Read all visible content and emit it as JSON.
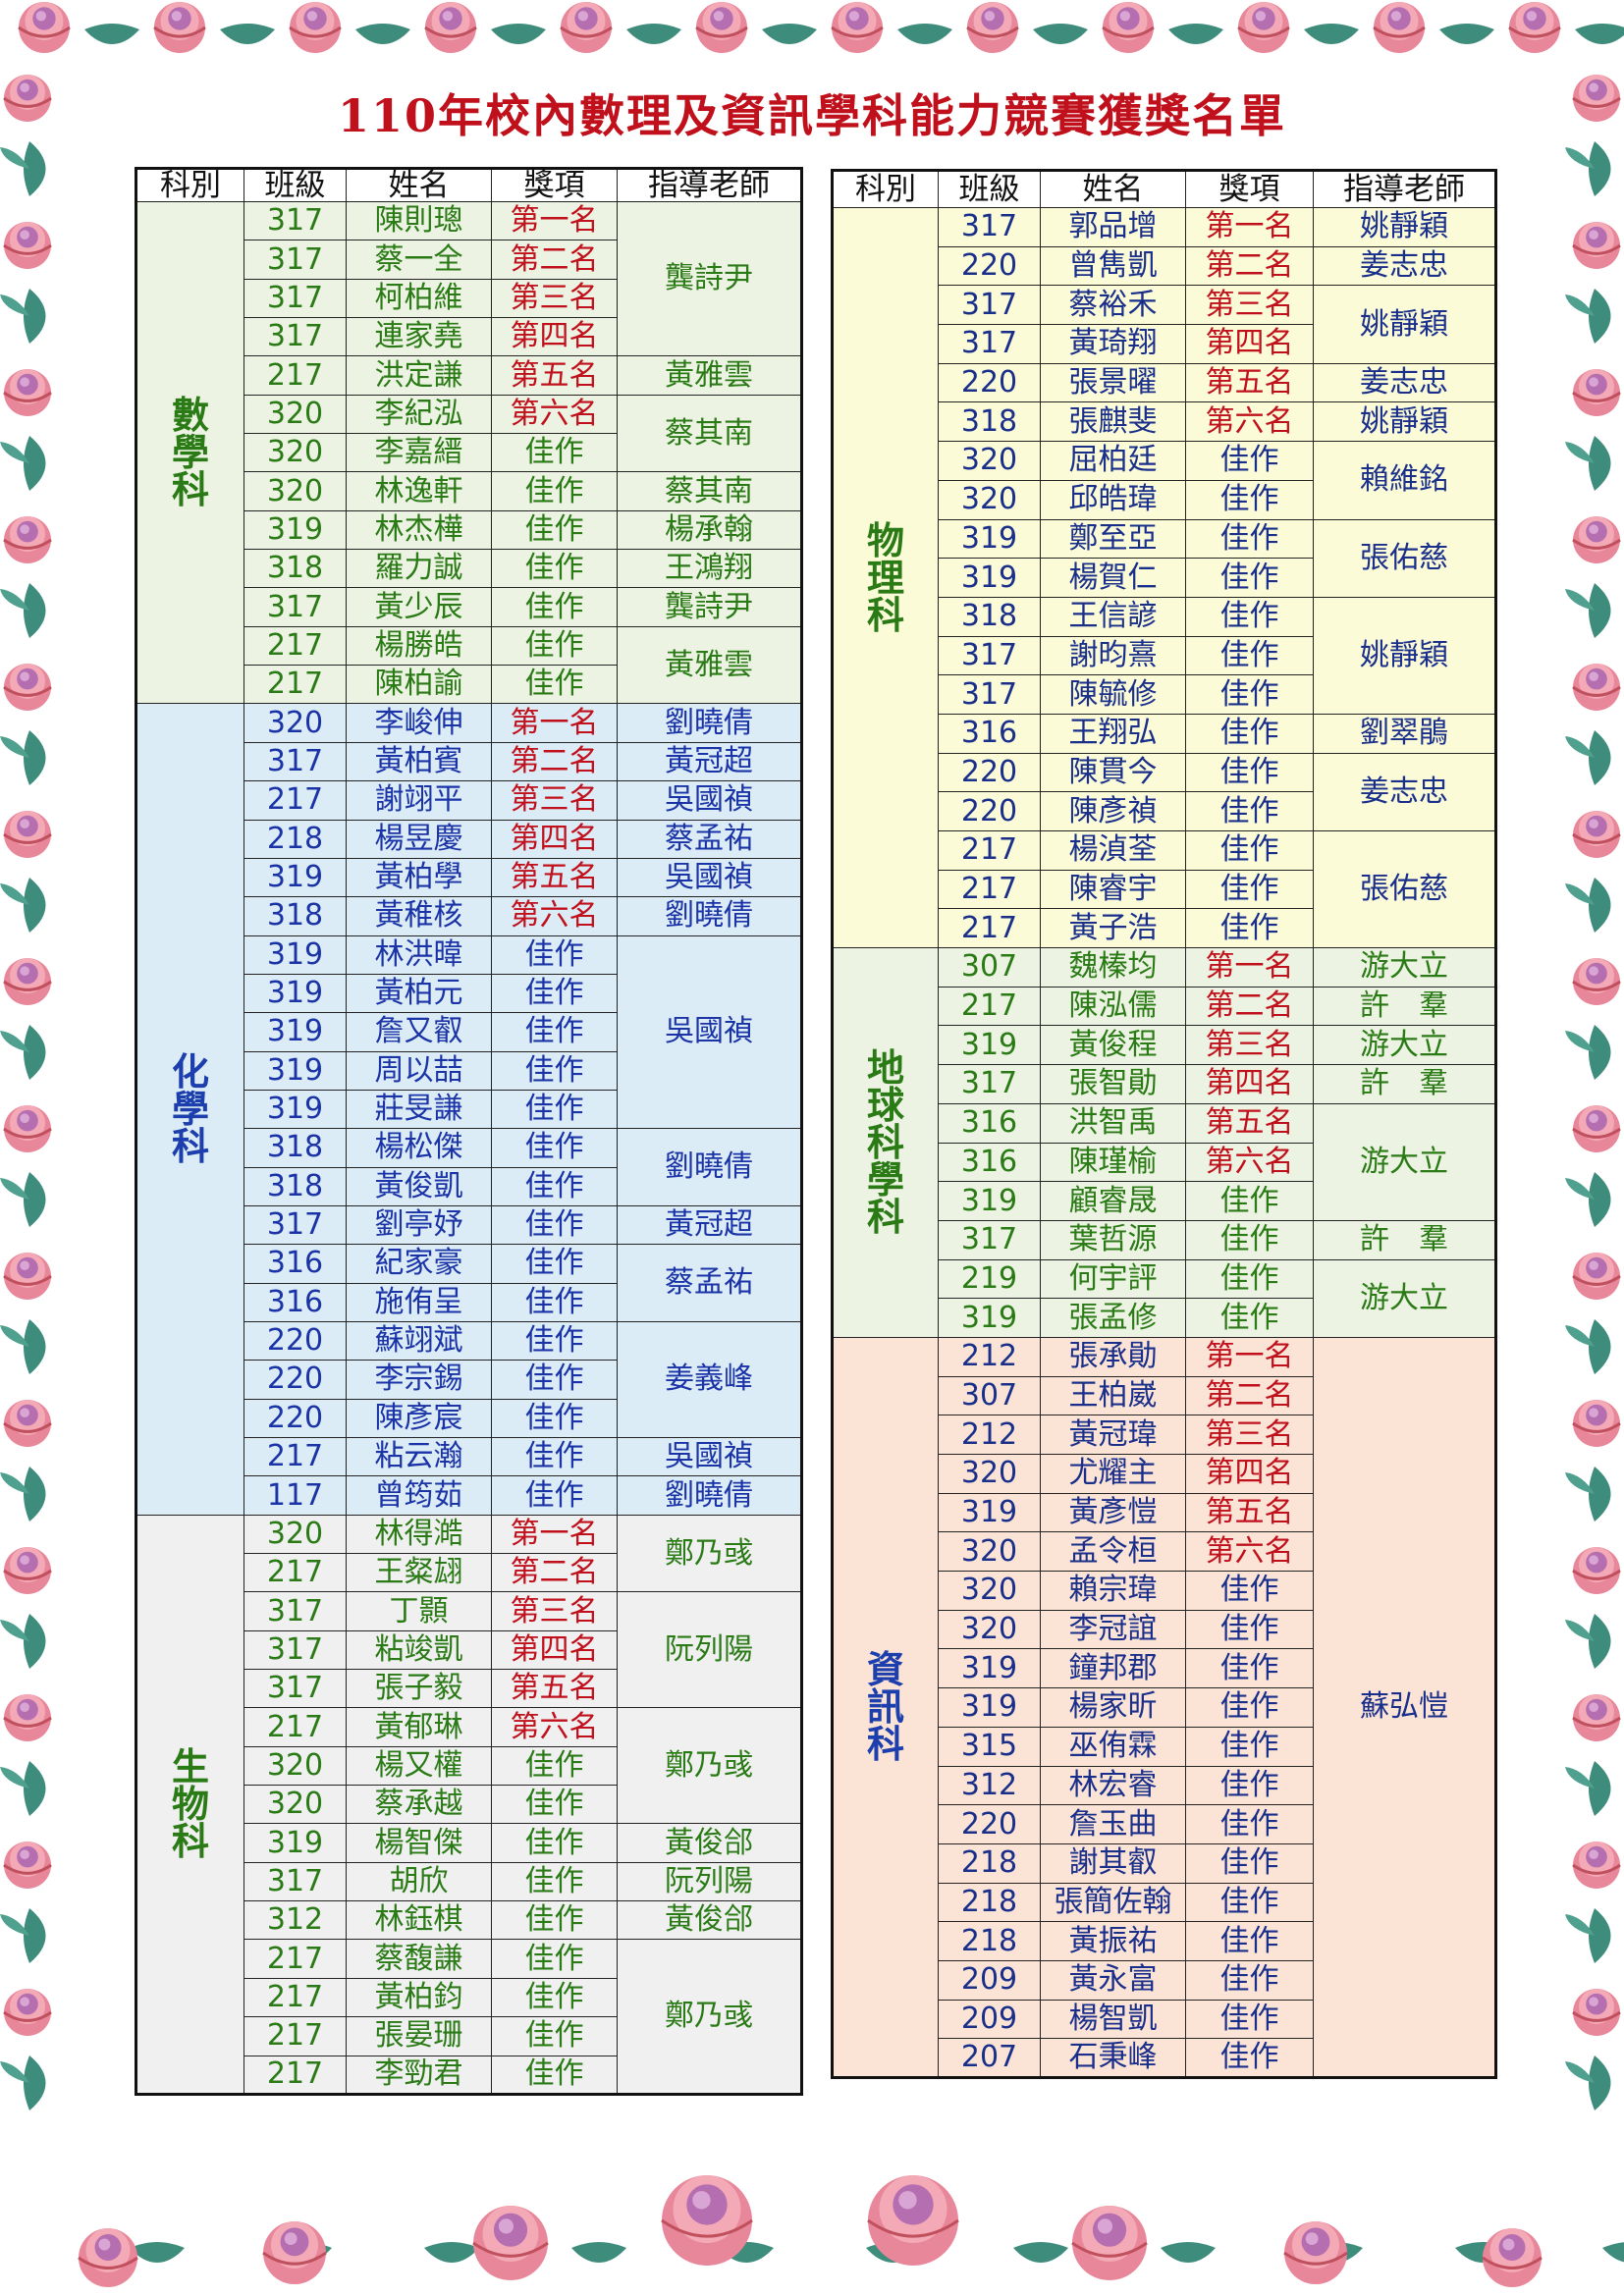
{
  "title": "110年校內數理及資訊學科能力競賽獲獎名單",
  "headers": [
    "科別",
    "班級",
    "姓名",
    "獎項",
    "指導老師"
  ],
  "colors": {
    "rank_top": "#c0101c",
    "border_flower": "#e8889a",
    "leaf": "#3f8a7a"
  },
  "left_table": [
    {
      "subject": "數學科",
      "theme": "green",
      "rows": [
        [
          "317",
          "陳則璁",
          "第一名"
        ],
        [
          "317",
          "蔡一全",
          "第二名"
        ],
        [
          "317",
          "柯柏維",
          "第三名"
        ],
        [
          "317",
          "連家堯",
          "第四名"
        ],
        [
          "217",
          "洪定謙",
          "第五名"
        ],
        [
          "320",
          "李紀泓",
          "第六名"
        ],
        [
          "320",
          "李嘉縉",
          "佳作"
        ],
        [
          "320",
          "林逸軒",
          "佳作"
        ],
        [
          "319",
          "林杰樺",
          "佳作"
        ],
        [
          "318",
          "羅力誠",
          "佳作"
        ],
        [
          "317",
          "黃少辰",
          "佳作"
        ],
        [
          "217",
          "楊勝皓",
          "佳作"
        ],
        [
          "217",
          "陳柏諭",
          "佳作"
        ]
      ],
      "teachers": [
        [
          "龔詩尹",
          4
        ],
        [
          "黃雅雲",
          1
        ],
        [
          "蔡其南",
          2
        ],
        [
          "蔡其南",
          1
        ],
        [
          "楊承翰",
          1
        ],
        [
          "王鴻翔",
          1
        ],
        [
          "龔詩尹",
          1
        ],
        [
          "黃雅雲",
          2
        ]
      ]
    },
    {
      "subject": "化學科",
      "theme": "blue",
      "rows": [
        [
          "320",
          "李峻伸",
          "第一名"
        ],
        [
          "317",
          "黃柏賓",
          "第二名"
        ],
        [
          "217",
          "謝翊平",
          "第三名"
        ],
        [
          "218",
          "楊昱慶",
          "第四名"
        ],
        [
          "319",
          "黃柏學",
          "第五名"
        ],
        [
          "318",
          "黃稚核",
          "第六名"
        ],
        [
          "319",
          "林洪暐",
          "佳作"
        ],
        [
          "319",
          "黃柏元",
          "佳作"
        ],
        [
          "319",
          "詹又叡",
          "佳作"
        ],
        [
          "319",
          "周以喆",
          "佳作"
        ],
        [
          "319",
          "莊旻謙",
          "佳作"
        ],
        [
          "318",
          "楊松傑",
          "佳作"
        ],
        [
          "318",
          "黃俊凱",
          "佳作"
        ],
        [
          "317",
          "劉亭妤",
          "佳作"
        ],
        [
          "316",
          "紀家豪",
          "佳作"
        ],
        [
          "316",
          "施侑呈",
          "佳作"
        ],
        [
          "220",
          "蘇翊斌",
          "佳作"
        ],
        [
          "220",
          "李宗錫",
          "佳作"
        ],
        [
          "220",
          "陳彥宸",
          "佳作"
        ],
        [
          "217",
          "粘云瀚",
          "佳作"
        ],
        [
          "117",
          "曾筠茹",
          "佳作"
        ]
      ],
      "teachers": [
        [
          "劉曉倩",
          1
        ],
        [
          "黃冠超",
          1
        ],
        [
          "吳國禎",
          1
        ],
        [
          "蔡孟祐",
          1
        ],
        [
          "吳國禎",
          1
        ],
        [
          "劉曉倩",
          1
        ],
        [
          "吳國禎",
          5
        ],
        [
          "劉曉倩",
          2
        ],
        [
          "黃冠超",
          1
        ],
        [
          "蔡孟祐",
          2
        ],
        [
          "姜義峰",
          3
        ],
        [
          "吳國禎",
          1
        ],
        [
          "劉曉倩",
          1
        ]
      ]
    },
    {
      "subject": "生物科",
      "theme": "gray",
      "rows": [
        [
          "320",
          "林得澔",
          "第一名"
        ],
        [
          "217",
          "王粲翃",
          "第二名"
        ],
        [
          "317",
          "丁顥",
          "第三名"
        ],
        [
          "317",
          "粘竣凱",
          "第四名"
        ],
        [
          "317",
          "張子毅",
          "第五名"
        ],
        [
          "217",
          "黃郁琳",
          "第六名"
        ],
        [
          "320",
          "楊又權",
          "佳作"
        ],
        [
          "320",
          "蔡承越",
          "佳作"
        ],
        [
          "319",
          "楊智傑",
          "佳作"
        ],
        [
          "317",
          "胡欣",
          "佳作"
        ],
        [
          "312",
          "林鈺棋",
          "佳作"
        ],
        [
          "217",
          "蔡馥謙",
          "佳作"
        ],
        [
          "217",
          "黃柏鈞",
          "佳作"
        ],
        [
          "217",
          "張晏珊",
          "佳作"
        ],
        [
          "217",
          "李勁君",
          "佳作"
        ]
      ],
      "teachers": [
        [
          "鄭乃彧",
          2
        ],
        [
          "阮列陽",
          3
        ],
        [
          "鄭乃彧",
          3
        ],
        [
          "黃俊郃",
          1
        ],
        [
          "阮列陽",
          1
        ],
        [
          "黃俊郃",
          1
        ],
        [
          "鄭乃彧",
          4
        ]
      ]
    }
  ],
  "right_table": [
    {
      "subject": "物理科",
      "theme": "yellow",
      "rows": [
        [
          "317",
          "郭品增",
          "第一名"
        ],
        [
          "220",
          "曾雋凱",
          "第二名"
        ],
        [
          "317",
          "蔡裕禾",
          "第三名"
        ],
        [
          "317",
          "黃琦翔",
          "第四名"
        ],
        [
          "220",
          "張景曜",
          "第五名"
        ],
        [
          "318",
          "張麒斐",
          "第六名"
        ],
        [
          "320",
          "屈柏廷",
          "佳作"
        ],
        [
          "320",
          "邱皓瑋",
          "佳作"
        ],
        [
          "319",
          "鄭至亞",
          "佳作"
        ],
        [
          "319",
          "楊賀仁",
          "佳作"
        ],
        [
          "318",
          "王信諺",
          "佳作"
        ],
        [
          "317",
          "謝昀熹",
          "佳作"
        ],
        [
          "317",
          "陳毓修",
          "佳作"
        ],
        [
          "316",
          "王翔弘",
          "佳作"
        ],
        [
          "220",
          "陳貫今",
          "佳作"
        ],
        [
          "220",
          "陳彥禎",
          "佳作"
        ],
        [
          "217",
          "楊湞荃",
          "佳作"
        ],
        [
          "217",
          "陳睿宇",
          "佳作"
        ],
        [
          "217",
          "黃子浩",
          "佳作"
        ]
      ],
      "teachers": [
        [
          "姚靜穎",
          1
        ],
        [
          "姜志忠",
          1
        ],
        [
          "姚靜穎",
          2
        ],
        [
          "姜志忠",
          1
        ],
        [
          "姚靜穎",
          1
        ],
        [
          "賴維銘",
          2
        ],
        [
          "張佑慈",
          2
        ],
        [
          "姚靜穎",
          3
        ],
        [
          "劉翠鵑",
          1
        ],
        [
          "姜志忠",
          2
        ],
        [
          "張佑慈",
          3
        ]
      ]
    },
    {
      "subject": "地球科學科",
      "theme": "green",
      "rows": [
        [
          "307",
          "魏榛均",
          "第一名"
        ],
        [
          "217",
          "陳泓儒",
          "第二名"
        ],
        [
          "319",
          "黃俊程",
          "第三名"
        ],
        [
          "317",
          "張智勛",
          "第四名"
        ],
        [
          "316",
          "洪智禹",
          "第五名"
        ],
        [
          "316",
          "陳瑾榆",
          "第六名"
        ],
        [
          "319",
          "顧睿晟",
          "佳作"
        ],
        [
          "317",
          "葉哲源",
          "佳作"
        ],
        [
          "219",
          "何宇評",
          "佳作"
        ],
        [
          "319",
          "張孟修",
          "佳作"
        ]
      ],
      "teachers": [
        [
          "游大立",
          1
        ],
        [
          "許　羣",
          1
        ],
        [
          "游大立",
          1
        ],
        [
          "許　羣",
          1
        ],
        [
          "游大立",
          3
        ],
        [
          "許　羣",
          1
        ],
        [
          "游大立",
          2
        ]
      ]
    },
    {
      "subject": "資訊科",
      "theme": "peach",
      "rows": [
        [
          "212",
          "張承勛",
          "第一名"
        ],
        [
          "307",
          "王柏崴",
          "第二名"
        ],
        [
          "212",
          "黃冠瑋",
          "第三名"
        ],
        [
          "320",
          "尤耀主",
          "第四名"
        ],
        [
          "319",
          "黃彥愷",
          "第五名"
        ],
        [
          "320",
          "孟令桓",
          "第六名"
        ],
        [
          "320",
          "賴宗瑋",
          "佳作"
        ],
        [
          "320",
          "李冠誼",
          "佳作"
        ],
        [
          "319",
          "鐘邦郡",
          "佳作"
        ],
        [
          "319",
          "楊家昕",
          "佳作"
        ],
        [
          "315",
          "巫侑霖",
          "佳作"
        ],
        [
          "312",
          "林宏睿",
          "佳作"
        ],
        [
          "220",
          "詹玉曲",
          "佳作"
        ],
        [
          "218",
          "謝其叡",
          "佳作"
        ],
        [
          "218",
          "張簡佐翰",
          "佳作"
        ],
        [
          "218",
          "黃振祐",
          "佳作"
        ],
        [
          "209",
          "黃永富",
          "佳作"
        ],
        [
          "209",
          "楊智凱",
          "佳作"
        ],
        [
          "207",
          "石秉峰",
          "佳作"
        ]
      ],
      "teachers": [
        [
          "蘇弘愷",
          19
        ]
      ]
    }
  ]
}
